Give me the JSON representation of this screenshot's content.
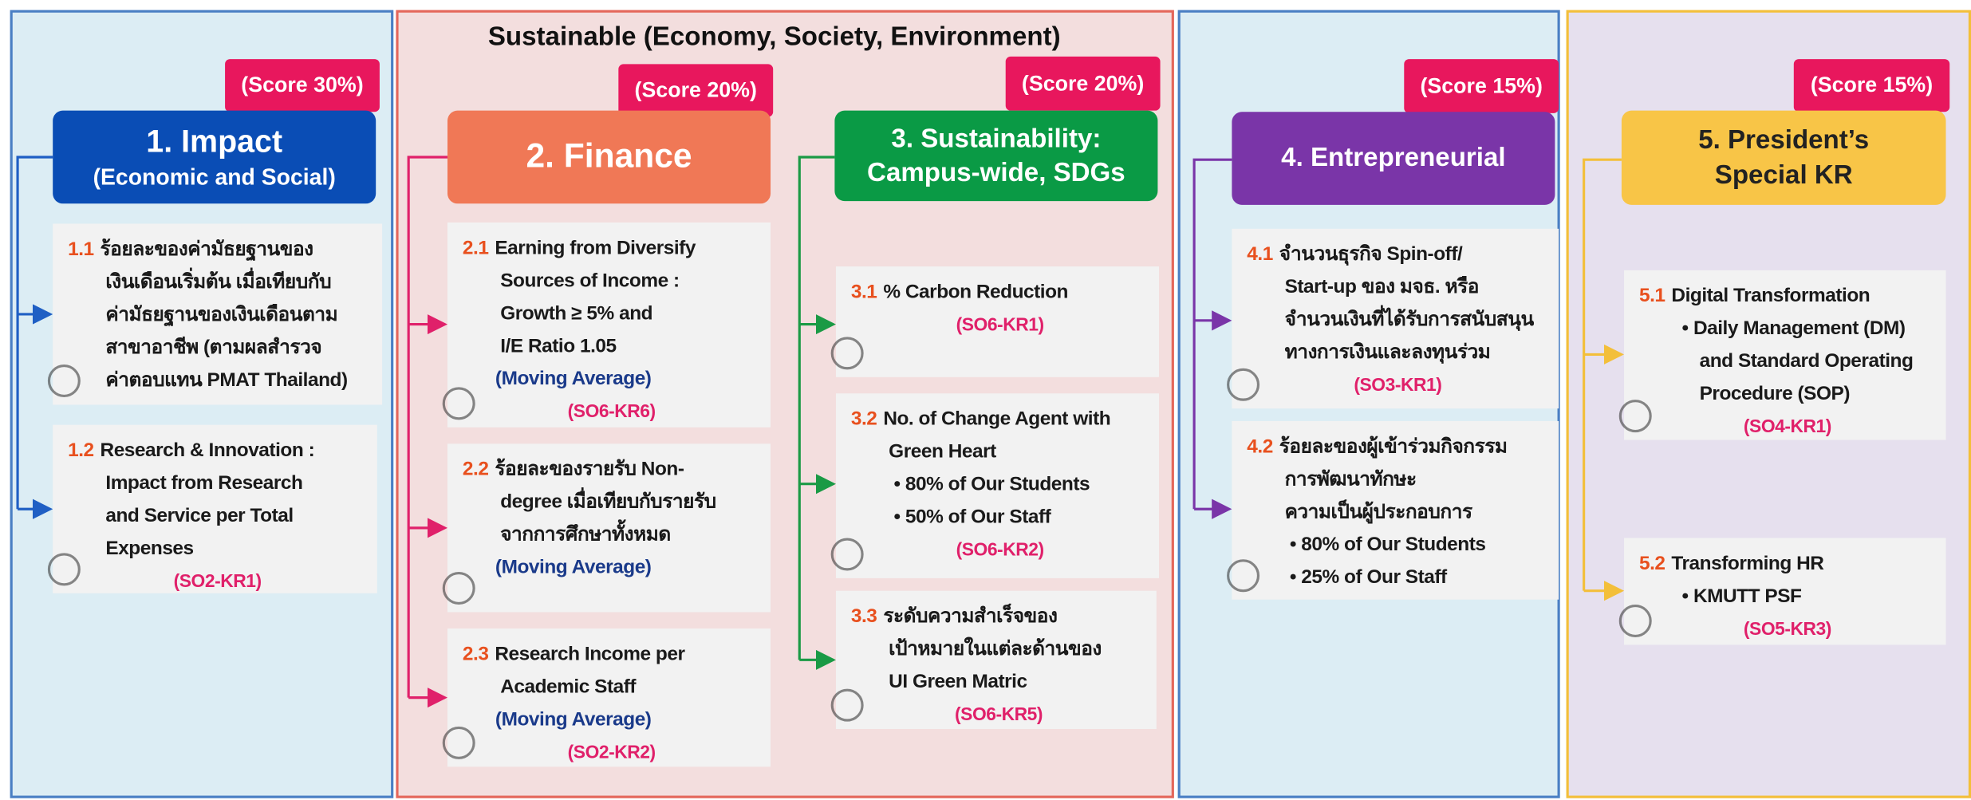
{
  "header": {
    "title": "Sustainable (Economy, Society, Environment)"
  },
  "columns": [
    {
      "score": "(Score 30%)",
      "title": [
        "1. Impact",
        "(Economic and Social)"
      ],
      "items": [
        {
          "code": "1.1",
          "lines": [
            "ร้อยละของค่ามัธยฐานของ",
            "เงินเดือนเริ่มต้น เมื่อเทียบกับ",
            "ค่ามัธยฐานของเงินเดือนตาม",
            "สาขาอาชีพ (ตามผลสำรวจ",
            "ค่าตอบแทน PMAT Thailand)"
          ]
        },
        {
          "code": "1.2",
          "lines": [
            "Research & Innovation :",
            "Impact from Research",
            "and Service per Total",
            "Expenses"
          ],
          "ref": "(SO2-KR1)"
        }
      ]
    },
    {
      "score": "(Score 20%)",
      "title": [
        "2. Finance"
      ],
      "items": [
        {
          "code": "2.1",
          "lines": [
            "Earning from Diversify",
            "Sources of Income :",
            "Growth ≥ 5% and",
            "I/E Ratio 1.05"
          ],
          "note": "(Moving Average)",
          "ref": "(SO6-KR6)"
        },
        {
          "code": "2.2",
          "lines": [
            "ร้อยละของรายรับ Non-",
            "degree เมื่อเทียบกับรายรับ",
            "จากการศึกษาทั้งหมด"
          ],
          "note": "(Moving Average)"
        },
        {
          "code": "2.3",
          "lines": [
            "Research Income per",
            "Academic Staff"
          ],
          "note": "(Moving Average)",
          "ref": "(SO2-KR2)"
        }
      ]
    },
    {
      "score": "(Score 20%)",
      "title": [
        "3. Sustainability:",
        "Campus-wide, SDGs"
      ],
      "items": [
        {
          "code": "3.1",
          "lines": [
            "% Carbon Reduction"
          ],
          "ref": "(SO6-KR1)"
        },
        {
          "code": "3.2",
          "lines": [
            "No. of Change Agent with",
            "Green Heart"
          ],
          "bullets": [
            "80% of Our Students",
            "50% of Our Staff"
          ],
          "ref": "(SO6-KR2)"
        },
        {
          "code": "3.3",
          "lines": [
            "ระดับความสำเร็จของ",
            "เป้าหมายในแต่ละด้านของ",
            "UI Green Matric"
          ],
          "ref": "(SO6-KR5)"
        }
      ]
    },
    {
      "score": "(Score 15%)",
      "title": [
        "4. Entrepreneurial"
      ],
      "items": [
        {
          "code": "4.1",
          "lines": [
            "จำนวนธุรกิจ Spin-off/",
            "Start-up ของ มจธ. หรือ",
            "จำนวนเงินที่ได้รับการสนับสนุน",
            "ทางการเงินและลงทุนร่วม"
          ],
          "ref": "(SO3-KR1)"
        },
        {
          "code": "4.2",
          "lines": [
            "ร้อยละของผู้เข้าร่วมกิจกรรม",
            "การพัฒนาทักษะ",
            "ความเป็นผู้ประกอบการ"
          ],
          "bullets": [
            "80% of Our Students",
            "25% of Our Staff"
          ]
        }
      ]
    },
    {
      "score": "(Score 15%)",
      "title": [
        "5. President’s",
        "Special KR"
      ],
      "items": [
        {
          "code": "5.1",
          "lines": [
            "Digital Transformation"
          ],
          "bullets": [
            "Daily Management (DM) and Standard Operating Procedure (SOP)"
          ],
          "ref": "(SO4-KR1)"
        },
        {
          "code": "5.2",
          "lines": [
            "Transforming HR"
          ],
          "bullets": [
            "KMUTT PSF"
          ],
          "ref": "(SO5-KR3)"
        }
      ]
    }
  ]
}
